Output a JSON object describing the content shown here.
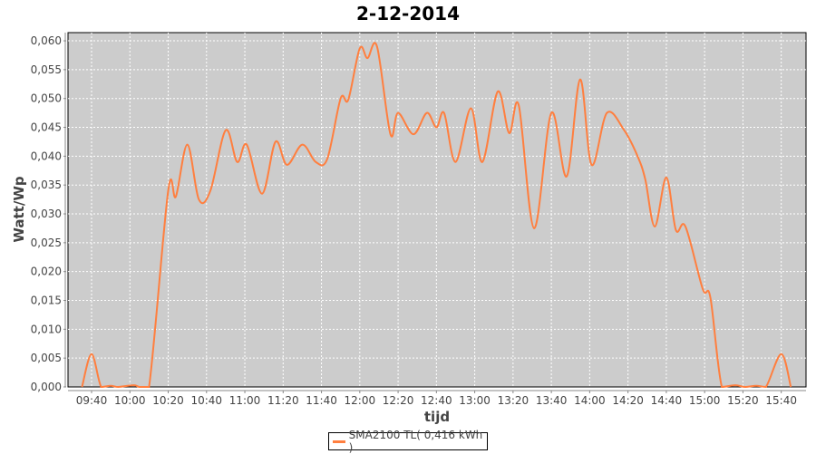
{
  "chart_data": {
    "type": "line",
    "title": "2-12-2014",
    "xlabel": "tijd",
    "ylabel": "Watt/Wp",
    "xlim": [
      "09:28",
      "15:53"
    ],
    "ylim": [
      0,
      0.0614
    ],
    "grid": true,
    "legend_placement": "bottom",
    "background": "#cccccc",
    "x_ticks": [
      "09:40",
      "10:00",
      "10:20",
      "10:40",
      "11:00",
      "11:20",
      "11:40",
      "12:00",
      "12:20",
      "12:40",
      "13:00",
      "13:20",
      "13:40",
      "14:00",
      "14:20",
      "14:40",
      "15:00",
      "15:20",
      "15:40"
    ],
    "y_ticks": [
      "0,000",
      "0,005",
      "0,010",
      "0,015",
      "0,020",
      "0,025",
      "0,030",
      "0,035",
      "0,040",
      "0,045",
      "0,050",
      "0,055",
      "0,060"
    ],
    "series": [
      {
        "name": "SMA2100 TL( 0,416 kWh )",
        "color": "#ff7f3f",
        "x": [
          "09:35",
          "09:40",
          "09:45",
          "09:50",
          "09:54",
          "10:02",
          "10:05",
          "10:10",
          "10:20",
          "10:24",
          "10:30",
          "10:36",
          "10:42",
          "10:50",
          "10:56",
          "11:01",
          "11:09",
          "11:16",
          "11:22",
          "11:30",
          "11:37",
          "11:43",
          "11:50",
          "11:54",
          "12:00",
          "12:04",
          "12:09",
          "12:16",
          "12:20",
          "12:28",
          "12:35",
          "12:40",
          "12:44",
          "12:50",
          "12:58",
          "13:04",
          "13:12",
          "13:18",
          "13:23",
          "13:31",
          "13:40",
          "13:48",
          "13:55",
          "14:01",
          "14:09",
          "14:18",
          "14:25",
          "14:29",
          "14:34",
          "14:40",
          "14:45",
          "14:50",
          "14:59",
          "15:03",
          "15:09",
          "15:16",
          "15:21",
          "15:27",
          "15:32",
          "15:40",
          "15:45"
        ],
        "values": [
          0,
          0.0057,
          0,
          0.0002,
          0,
          0.0003,
          0,
          0,
          0.034,
          0.033,
          0.042,
          0.0325,
          0.034,
          0.0445,
          0.039,
          0.042,
          0.0335,
          0.0425,
          0.0385,
          0.042,
          0.039,
          0.0395,
          0.05,
          0.0498,
          0.0587,
          0.057,
          0.059,
          0.0438,
          0.0475,
          0.0438,
          0.0475,
          0.045,
          0.0475,
          0.039,
          0.0483,
          0.039,
          0.0512,
          0.044,
          0.0488,
          0.0275,
          0.0475,
          0.0365,
          0.0533,
          0.0385,
          0.0475,
          0.0445,
          0.04,
          0.036,
          0.0278,
          0.0363,
          0.0272,
          0.0278,
          0.017,
          0.0155,
          0,
          0.0003,
          0,
          0.0002,
          0,
          0.0057,
          0
        ]
      }
    ]
  }
}
